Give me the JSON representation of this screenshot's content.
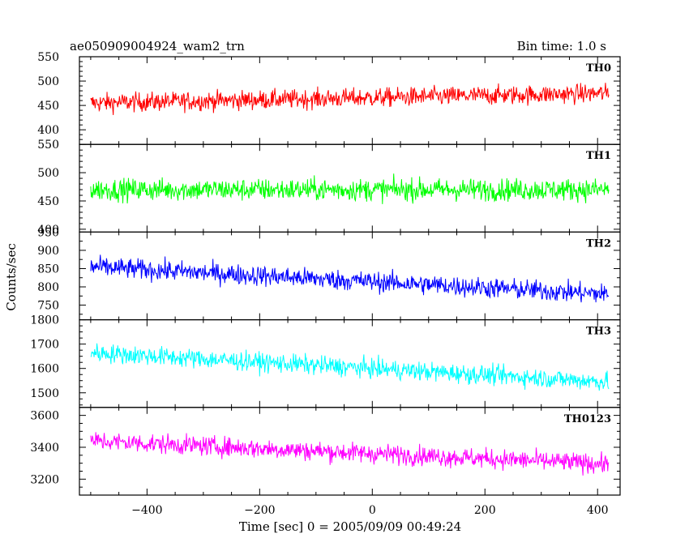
{
  "header": {
    "title": "ae050909004924_wam2_trn",
    "bin_time": "Bin time: 1.0 s"
  },
  "chart_data": {
    "type": "line",
    "xlabel": "Time [sec] 0 = 2005/09/09 00:49:24",
    "ylabel": "Counts/sec",
    "xlim": [
      -520,
      440
    ],
    "x_ticks": [
      -400,
      -200,
      0,
      200,
      400
    ],
    "x_range": [
      -500,
      420
    ],
    "bin_time_s": 1.0,
    "panels": [
      {
        "name": "TH0",
        "color": "#ff0000",
        "ylim": [
          370,
          550
        ],
        "y_ticks": [
          400,
          450,
          500,
          550
        ],
        "trend": {
          "x": [
            -500,
            420
          ],
          "y": [
            455,
            475
          ]
        },
        "noise_amplitude": 35
      },
      {
        "name": "TH1",
        "color": "#00ff00",
        "ylim": [
          395,
          550
        ],
        "y_ticks": [
          400,
          450,
          500,
          550
        ],
        "trend": {
          "x": [
            -500,
            420
          ],
          "y": [
            470,
            470
          ]
        },
        "noise_amplitude": 35
      },
      {
        "name": "TH2",
        "color": "#0000ff",
        "ylim": [
          710,
          950
        ],
        "y_ticks": [
          750,
          800,
          850,
          900,
          950
        ],
        "trend": {
          "x": [
            -500,
            420
          ],
          "y": [
            855,
            780
          ]
        },
        "noise_amplitude": 50
      },
      {
        "name": "TH3",
        "color": "#00ffff",
        "ylim": [
          1440,
          1800
        ],
        "y_ticks": [
          1500,
          1600,
          1700,
          1800
        ],
        "trend": {
          "x": [
            -500,
            420
          ],
          "y": [
            1665,
            1545
          ]
        },
        "noise_amplitude": 70
      },
      {
        "name": "TH0123",
        "color": "#ff00ff",
        "ylim": [
          3100,
          3650
        ],
        "y_ticks": [
          3200,
          3400,
          3600
        ],
        "trend": {
          "x": [
            -500,
            420
          ],
          "y": [
            3440,
            3295
          ]
        },
        "noise_amplitude": 110
      }
    ]
  }
}
